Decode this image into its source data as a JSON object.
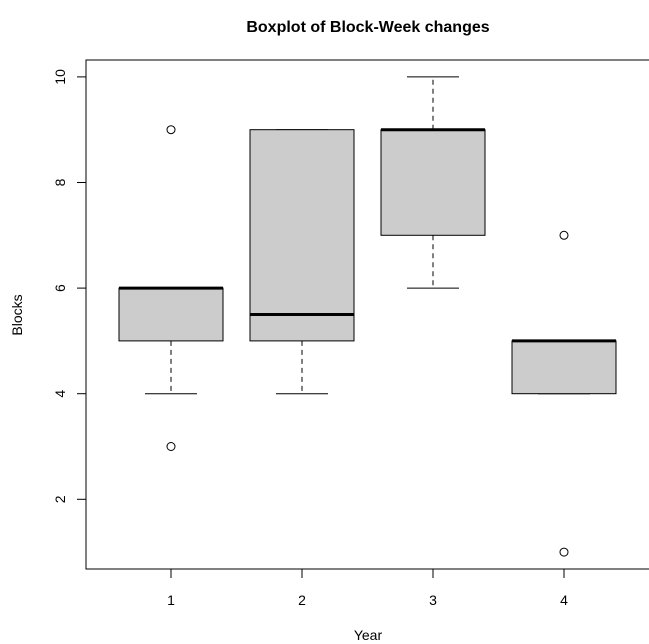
{
  "chart_data": {
    "type": "box",
    "title": "Boxplot of Block-Week changes",
    "xlabel": "Year",
    "ylabel": "Blocks",
    "categories": [
      "1",
      "2",
      "3",
      "4"
    ],
    "yticks": [
      "2",
      "4",
      "6",
      "8",
      "10"
    ],
    "ylim": [
      0.68,
      10.32
    ],
    "grid": false,
    "colors": {
      "box_fill": "#cccccc",
      "stroke": "#000000"
    },
    "boxes": [
      {
        "category": "1",
        "whisker_low": 4,
        "q1": 5,
        "median": 6,
        "q3": 6,
        "whisker_high": 6,
        "outliers": [
          3,
          9
        ]
      },
      {
        "category": "2",
        "whisker_low": 4,
        "q1": 5,
        "median": 5.5,
        "q3": 9,
        "whisker_high": 9,
        "outliers": []
      },
      {
        "category": "3",
        "whisker_low": 6,
        "q1": 7,
        "median": 9,
        "q3": 9,
        "whisker_high": 10,
        "outliers": []
      },
      {
        "category": "4",
        "whisker_low": 4,
        "q1": 4,
        "median": 5,
        "q3": 5,
        "whisker_high": 5,
        "outliers": [
          1,
          7
        ]
      }
    ]
  }
}
